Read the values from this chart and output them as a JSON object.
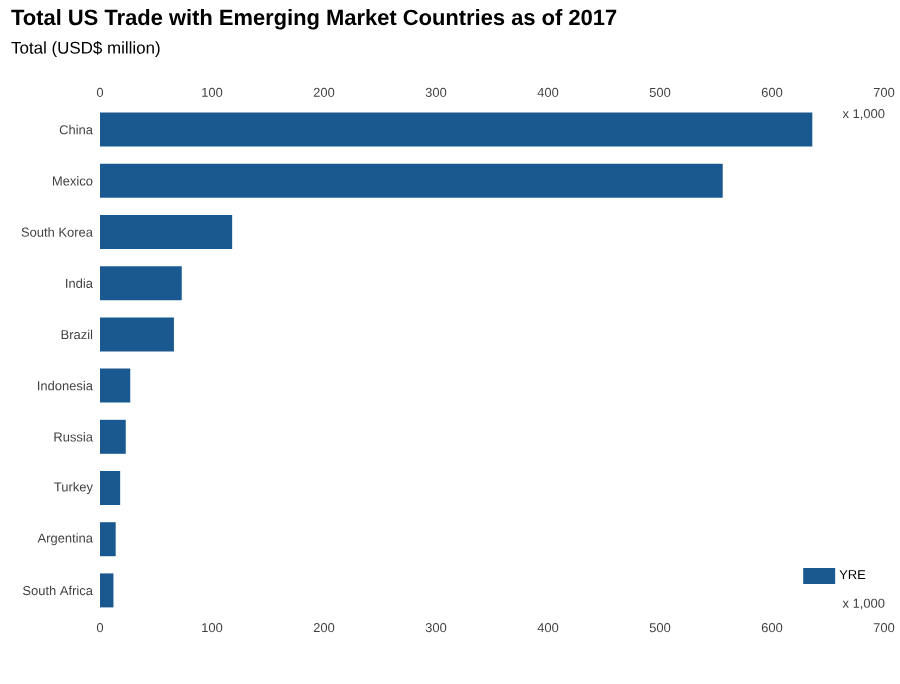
{
  "chart_data": {
    "type": "bar",
    "orientation": "horizontal",
    "title": "Total US Trade with Emerging Market Countries as of 2017",
    "subtitle": "Total (USD$ million)",
    "categories": [
      "China",
      "Mexico",
      "South Korea",
      "India",
      "Brazil",
      "Indonesia",
      "Russia",
      "Turkey",
      "Argentina",
      "South Africa"
    ],
    "series": [
      {
        "name": "YRE",
        "color": "#1a5890",
        "values": [
          636,
          556,
          118,
          73,
          66,
          27,
          23,
          18,
          14,
          12
        ]
      }
    ],
    "xlim": [
      0,
      700
    ],
    "xticks": [
      0,
      100,
      200,
      300,
      400,
      500,
      600,
      700
    ],
    "x2lim": [
      0,
      700
    ],
    "x2ticks": [
      0,
      100,
      200,
      300,
      400,
      500,
      600,
      700
    ],
    "legend": "bottom right",
    "annotations": [
      "x 1,000",
      "x 1,000"
    ]
  }
}
